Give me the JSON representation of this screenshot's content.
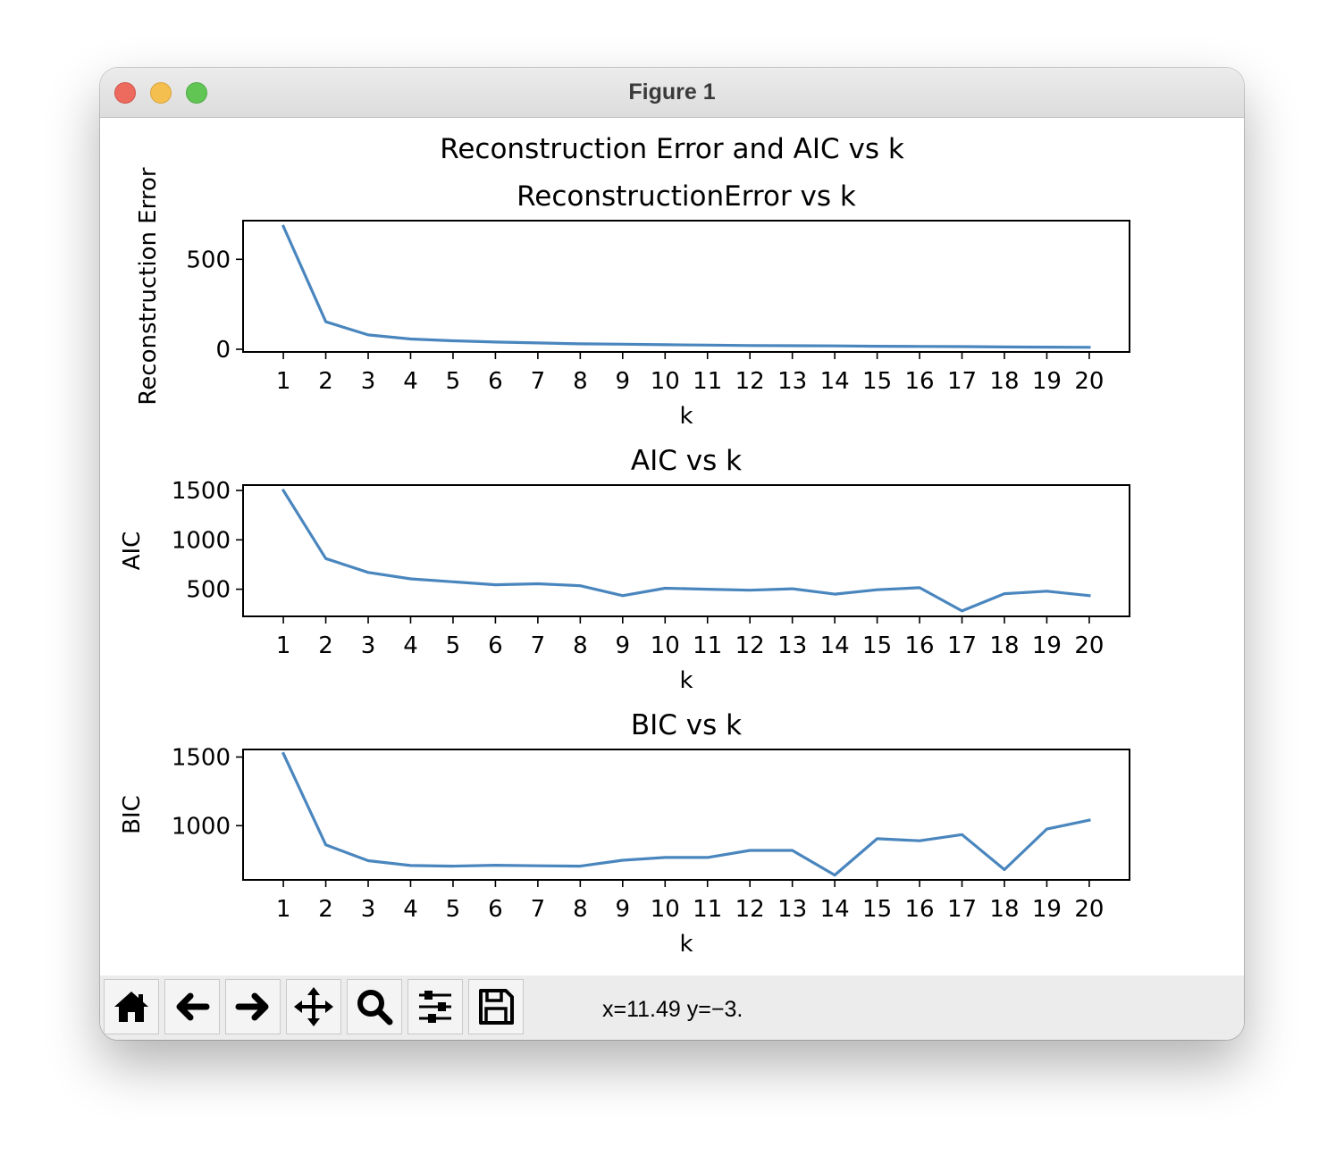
{
  "window": {
    "title": "Figure 1"
  },
  "figure": {
    "suptitle": "Reconstruction Error and AIC vs k"
  },
  "chart_data": [
    {
      "type": "line",
      "title": "ReconstructionError vs k",
      "xlabel": "k",
      "ylabel": "Reconstruction Error",
      "x": [
        1,
        2,
        3,
        4,
        5,
        6,
        7,
        8,
        9,
        10,
        11,
        12,
        13,
        14,
        15,
        16,
        17,
        18,
        19,
        20
      ],
      "xticks": [
        1,
        2,
        3,
        4,
        5,
        6,
        7,
        8,
        9,
        10,
        11,
        12,
        13,
        14,
        15,
        16,
        17,
        18,
        19,
        20
      ],
      "xlim": [
        0.05,
        20.95
      ],
      "ylim": [
        -15,
        715
      ],
      "yticks": [
        0,
        500
      ],
      "series": [
        {
          "values": [
            683,
            153,
            80,
            57,
            47,
            40,
            35,
            30,
            28,
            25,
            23,
            21,
            20,
            19,
            17,
            16,
            15,
            13,
            12,
            11
          ],
          "color": "#4a86be"
        }
      ],
      "grid": false
    },
    {
      "type": "line",
      "title": "AIC vs k",
      "xlabel": "k",
      "ylabel": "AIC",
      "x": [
        1,
        2,
        3,
        4,
        5,
        6,
        7,
        8,
        9,
        10,
        11,
        12,
        13,
        14,
        15,
        16,
        17,
        18,
        19,
        20
      ],
      "xticks": [
        1,
        2,
        3,
        4,
        5,
        6,
        7,
        8,
        9,
        10,
        11,
        12,
        13,
        14,
        15,
        16,
        17,
        18,
        19,
        20
      ],
      "xlim": [
        0.05,
        20.95
      ],
      "ylim": [
        225,
        1555
      ],
      "yticks": [
        500,
        1000,
        1500
      ],
      "series": [
        {
          "values": [
            1500,
            810,
            670,
            605,
            575,
            545,
            555,
            535,
            435,
            510,
            500,
            490,
            505,
            450,
            495,
            515,
            280,
            455,
            480,
            435
          ],
          "color": "#4a86be"
        }
      ],
      "grid": false
    },
    {
      "type": "line",
      "title": "BIC vs k",
      "xlabel": "k",
      "ylabel": "BIC",
      "x": [
        1,
        2,
        3,
        4,
        5,
        6,
        7,
        8,
        9,
        10,
        11,
        12,
        13,
        14,
        15,
        16,
        17,
        18,
        19,
        20
      ],
      "xticks": [
        1,
        2,
        3,
        4,
        5,
        6,
        7,
        8,
        9,
        10,
        11,
        12,
        13,
        14,
        15,
        16,
        17,
        18,
        19,
        20
      ],
      "xlim": [
        0.05,
        20.95
      ],
      "ylim": [
        605,
        1555
      ],
      "yticks": [
        1000,
        1500
      ],
      "series": [
        {
          "values": [
            1525,
            860,
            745,
            710,
            705,
            712,
            708,
            705,
            748,
            768,
            768,
            820,
            820,
            640,
            905,
            890,
            935,
            680,
            975,
            1040
          ],
          "color": "#4a86be"
        }
      ],
      "grid": false
    }
  ],
  "toolbar": {
    "buttons": [
      {
        "icon": "home-icon",
        "name": "home-button"
      },
      {
        "icon": "back-arrow-icon",
        "name": "back-button"
      },
      {
        "icon": "forward-arrow-icon",
        "name": "forward-button"
      },
      {
        "icon": "pan-move-icon",
        "name": "pan-button"
      },
      {
        "icon": "zoom-magnifier-icon",
        "name": "zoom-button"
      },
      {
        "icon": "subplots-sliders-icon",
        "name": "configure-subplots-button"
      },
      {
        "icon": "save-disk-icon",
        "name": "save-button"
      }
    ],
    "coords": "x=11.49 y=−3."
  }
}
